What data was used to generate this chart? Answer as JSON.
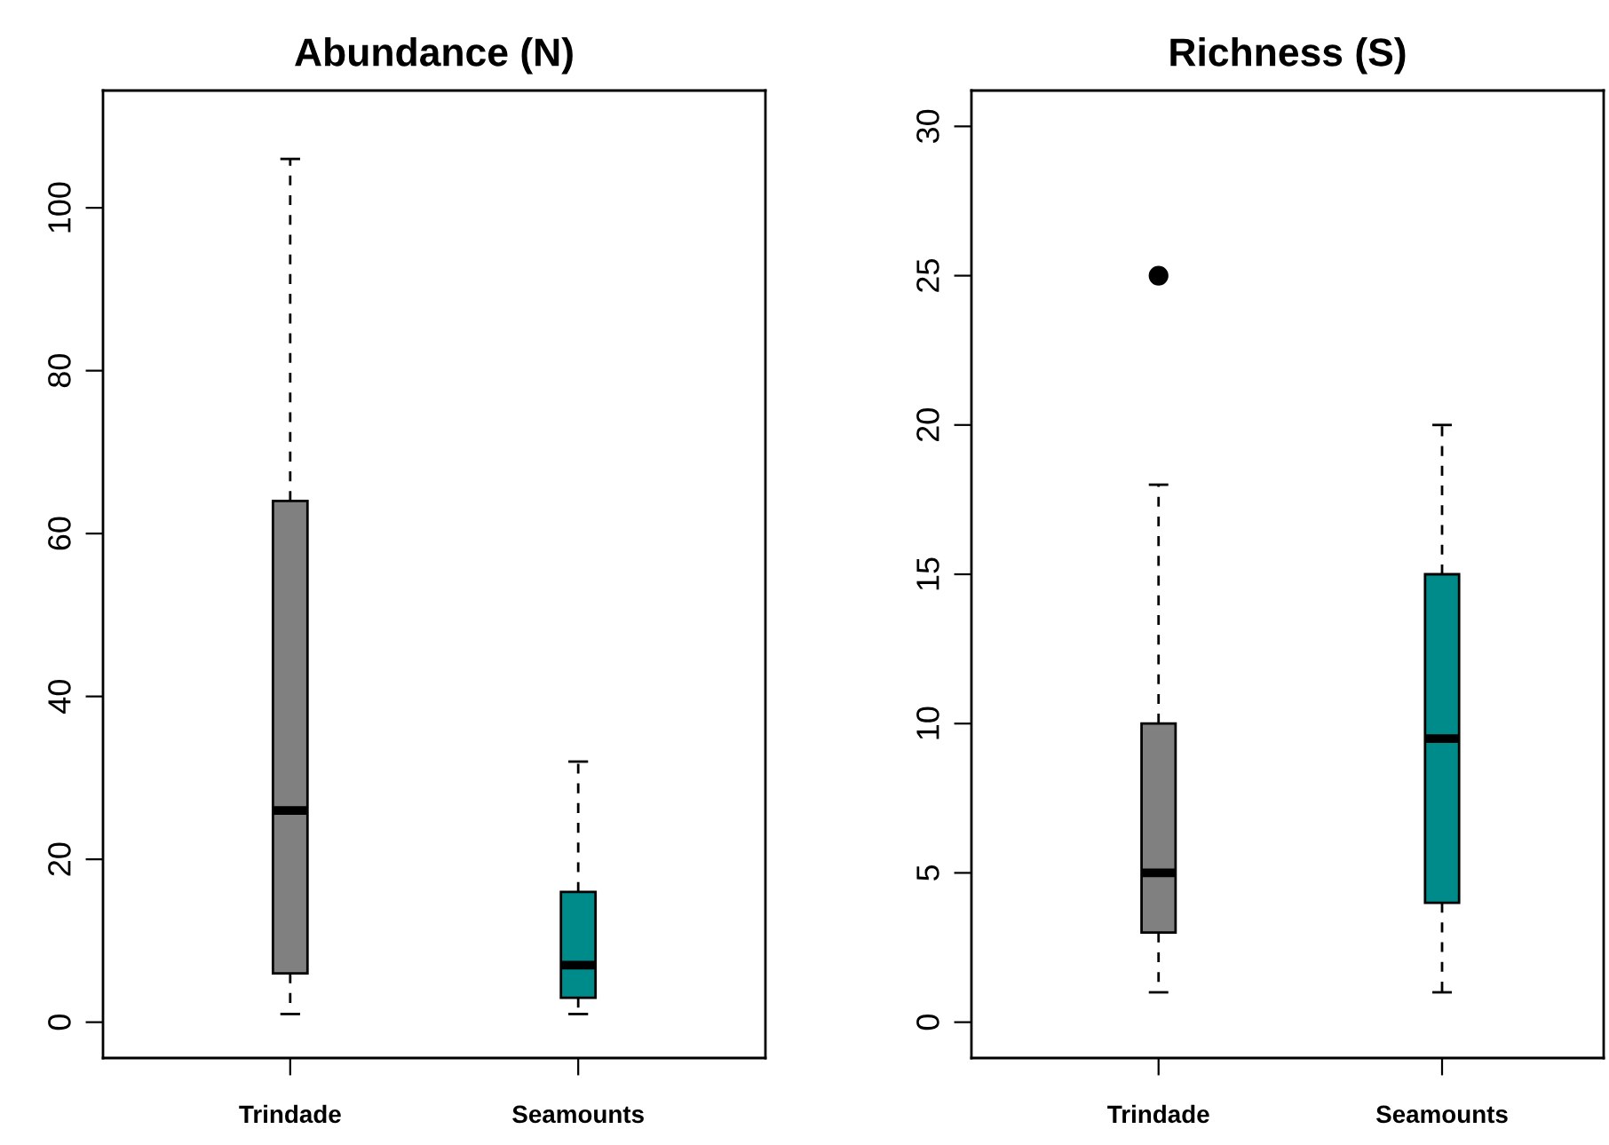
{
  "chart_data": [
    {
      "type": "box",
      "title": "Abundance (N)",
      "categories": [
        "Trindade",
        "Seamounts"
      ],
      "colors": [
        "#808080",
        "#008b8b"
      ],
      "boxes": [
        {
          "low": 1,
          "q1": 6,
          "median": 26,
          "q3": 64,
          "high": 106
        },
        {
          "low": 1,
          "q1": 3,
          "median": 7,
          "q3": 16,
          "high": 32
        }
      ],
      "ylim": [
        -4.4,
        114.4
      ],
      "yticks": [
        0,
        20,
        40,
        60,
        80,
        100
      ],
      "grid": false,
      "legend": false
    },
    {
      "type": "box",
      "title": "Richness (S)",
      "categories": [
        "Trindade",
        "Seamounts"
      ],
      "colors": [
        "#808080",
        "#008b8b"
      ],
      "boxes": [
        {
          "low": 1,
          "q1": 3,
          "median": 5,
          "q3": 10,
          "high": 18,
          "outliers": [
            25
          ]
        },
        {
          "low": 1,
          "q1": 4,
          "median": 9.5,
          "q3": 15,
          "high": 20
        }
      ],
      "ylim": [
        -1.2,
        31.2
      ],
      "yticks": [
        0,
        5,
        10,
        15,
        20,
        25,
        30
      ],
      "grid": false,
      "legend": false
    }
  ]
}
